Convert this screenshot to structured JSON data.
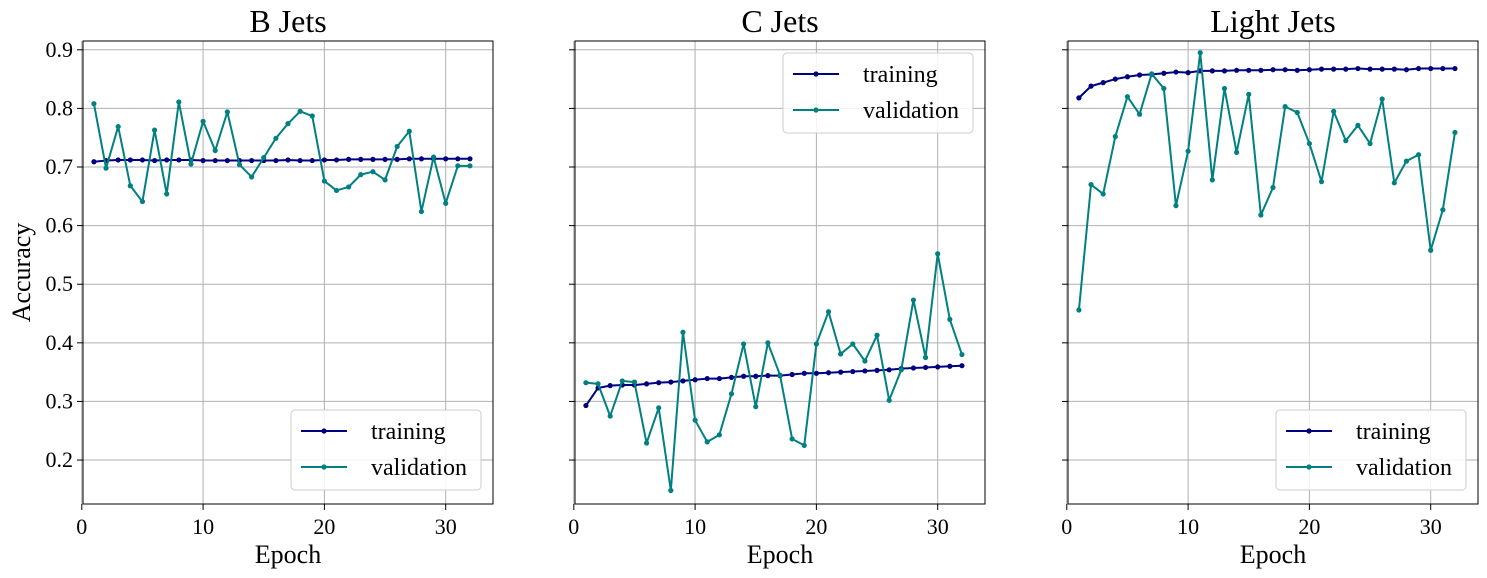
{
  "chart_data": [
    {
      "type": "line",
      "title": "B Jets",
      "xlabel": "Epoch",
      "ylabel": "Accuracy",
      "xlim": [
        0.1,
        33.9
      ],
      "ylim": [
        0.125,
        0.915
      ],
      "xticks": [
        0,
        10,
        20,
        30
      ],
      "yticks": [
        0.2,
        0.3,
        0.4,
        0.5,
        0.6,
        0.7,
        0.8,
        0.9
      ],
      "grid": true,
      "legend_position": "lower right",
      "x": [
        1,
        2,
        3,
        4,
        5,
        6,
        7,
        8,
        9,
        10,
        11,
        12,
        13,
        14,
        15,
        16,
        17,
        18,
        19,
        20,
        21,
        22,
        23,
        24,
        25,
        26,
        27,
        28,
        29,
        30,
        31,
        32
      ],
      "series": [
        {
          "name": "training",
          "color": "#000080",
          "values": [
            0.709,
            0.711,
            0.712,
            0.712,
            0.712,
            0.711,
            0.712,
            0.712,
            0.712,
            0.711,
            0.711,
            0.711,
            0.711,
            0.711,
            0.711,
            0.711,
            0.712,
            0.711,
            0.711,
            0.712,
            0.712,
            0.713,
            0.713,
            0.713,
            0.713,
            0.713,
            0.714,
            0.714,
            0.714,
            0.714,
            0.714,
            0.714
          ]
        },
        {
          "name": "validation",
          "color": "#008080",
          "values": [
            0.808,
            0.698,
            0.769,
            0.668,
            0.641,
            0.763,
            0.654,
            0.811,
            0.705,
            0.778,
            0.728,
            0.794,
            0.704,
            0.683,
            0.716,
            0.749,
            0.774,
            0.795,
            0.787,
            0.676,
            0.66,
            0.666,
            0.687,
            0.692,
            0.678,
            0.735,
            0.761,
            0.624,
            0.717,
            0.638,
            0.702,
            0.702
          ]
        }
      ]
    },
    {
      "type": "line",
      "title": "C Jets",
      "xlabel": "Epoch",
      "ylabel": "",
      "xlim": [
        0.1,
        33.9
      ],
      "ylim": [
        0.125,
        0.915
      ],
      "xticks": [
        0,
        10,
        20,
        30
      ],
      "yticks": [
        0.2,
        0.3,
        0.4,
        0.5,
        0.6,
        0.7,
        0.8,
        0.9
      ],
      "grid": true,
      "legend_position": "upper right",
      "x": [
        1,
        2,
        3,
        4,
        5,
        6,
        7,
        8,
        9,
        10,
        11,
        12,
        13,
        14,
        15,
        16,
        17,
        18,
        19,
        20,
        21,
        22,
        23,
        24,
        25,
        26,
        27,
        28,
        29,
        30,
        31,
        32
      ],
      "series": [
        {
          "name": "training",
          "color": "#000080",
          "values": [
            0.293,
            0.323,
            0.327,
            0.328,
            0.328,
            0.33,
            0.332,
            0.333,
            0.335,
            0.337,
            0.339,
            0.339,
            0.341,
            0.343,
            0.343,
            0.344,
            0.344,
            0.346,
            0.348,
            0.348,
            0.349,
            0.35,
            0.351,
            0.352,
            0.353,
            0.354,
            0.356,
            0.357,
            0.358,
            0.359,
            0.36,
            0.361
          ]
        },
        {
          "name": "validation",
          "color": "#008080",
          "values": [
            0.332,
            0.33,
            0.275,
            0.335,
            0.333,
            0.229,
            0.289,
            0.148,
            0.418,
            0.268,
            0.231,
            0.243,
            0.313,
            0.398,
            0.291,
            0.4,
            0.345,
            0.236,
            0.225,
            0.398,
            0.453,
            0.381,
            0.398,
            0.369,
            0.413,
            0.302,
            0.354,
            0.473,
            0.375,
            0.552,
            0.44,
            0.38
          ]
        }
      ]
    },
    {
      "type": "line",
      "title": "Light Jets",
      "xlabel": "Epoch",
      "ylabel": "",
      "xlim": [
        0.1,
        33.9
      ],
      "ylim": [
        0.125,
        0.915
      ],
      "xticks": [
        0,
        10,
        20,
        30
      ],
      "yticks": [
        0.2,
        0.3,
        0.4,
        0.5,
        0.6,
        0.7,
        0.8,
        0.9
      ],
      "grid": true,
      "legend_position": "lower right",
      "x": [
        1,
        2,
        3,
        4,
        5,
        6,
        7,
        8,
        9,
        10,
        11,
        12,
        13,
        14,
        15,
        16,
        17,
        18,
        19,
        20,
        21,
        22,
        23,
        24,
        25,
        26,
        27,
        28,
        29,
        30,
        31,
        32
      ],
      "series": [
        {
          "name": "training",
          "color": "#000080",
          "values": [
            0.818,
            0.838,
            0.844,
            0.85,
            0.854,
            0.857,
            0.858,
            0.86,
            0.862,
            0.861,
            0.864,
            0.864,
            0.864,
            0.865,
            0.865,
            0.865,
            0.866,
            0.866,
            0.865,
            0.866,
            0.867,
            0.867,
            0.867,
            0.868,
            0.867,
            0.867,
            0.867,
            0.866,
            0.868,
            0.868,
            0.868,
            0.868
          ]
        },
        {
          "name": "validation",
          "color": "#008080",
          "values": [
            0.456,
            0.67,
            0.654,
            0.752,
            0.82,
            0.79,
            0.859,
            0.834,
            0.634,
            0.727,
            0.895,
            0.678,
            0.834,
            0.725,
            0.824,
            0.618,
            0.665,
            0.803,
            0.793,
            0.74,
            0.675,
            0.795,
            0.745,
            0.771,
            0.74,
            0.816,
            0.673,
            0.71,
            0.721,
            0.558,
            0.627,
            0.759
          ]
        }
      ]
    }
  ]
}
